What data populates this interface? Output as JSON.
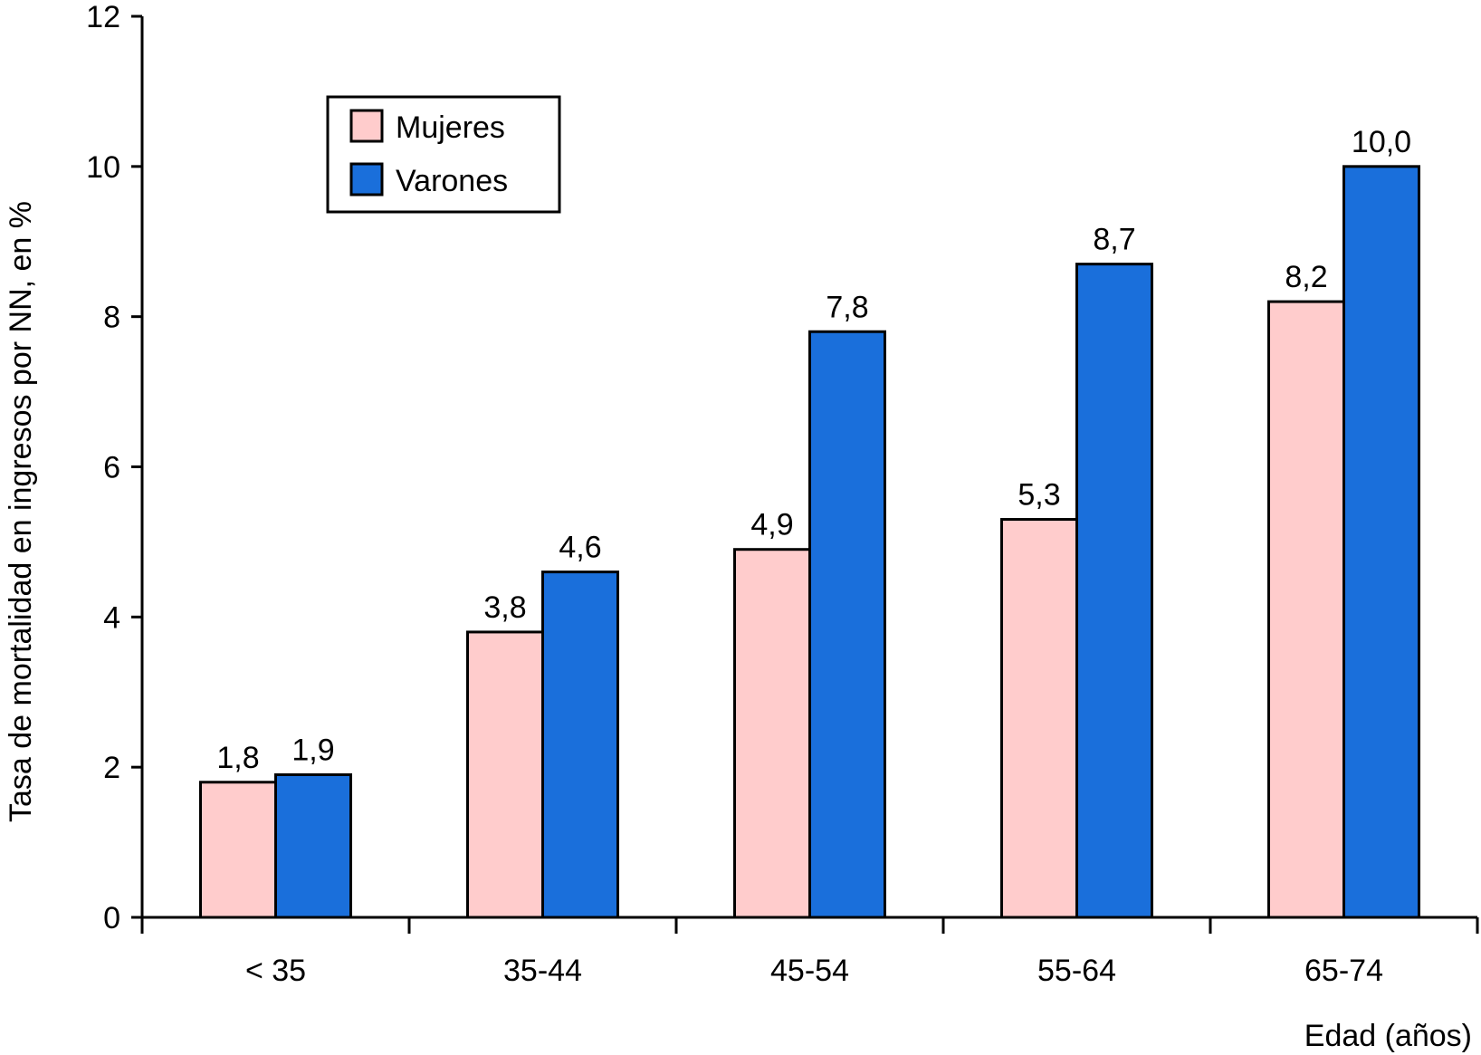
{
  "chart_data": {
    "type": "bar",
    "title": "",
    "xlabel": "Edad (años)",
    "ylabel": "Tasa de mortalidad en ingresos por NN, en %",
    "categories": [
      "< 35",
      "35-44",
      "45-54",
      "55-64",
      "65-74"
    ],
    "series": [
      {
        "name": "Mujeres",
        "color": "#FFCCCC",
        "values": [
          1.8,
          3.8,
          4.9,
          5.3,
          8.2
        ],
        "labels": [
          "1,8",
          "3,8",
          "4,9",
          "5,3",
          "8,2"
        ]
      },
      {
        "name": "Varones",
        "color": "#1A6FDB",
        "values": [
          1.9,
          4.6,
          7.8,
          8.7,
          10.0
        ],
        "labels": [
          "1,9",
          "4,6",
          "7,8",
          "8,7",
          "10,0"
        ]
      }
    ],
    "ylim": [
      0,
      12
    ],
    "yticks": [
      "0",
      "2",
      "4",
      "6",
      "8",
      "10",
      "12"
    ],
    "grid": false,
    "legend": "top-left"
  }
}
